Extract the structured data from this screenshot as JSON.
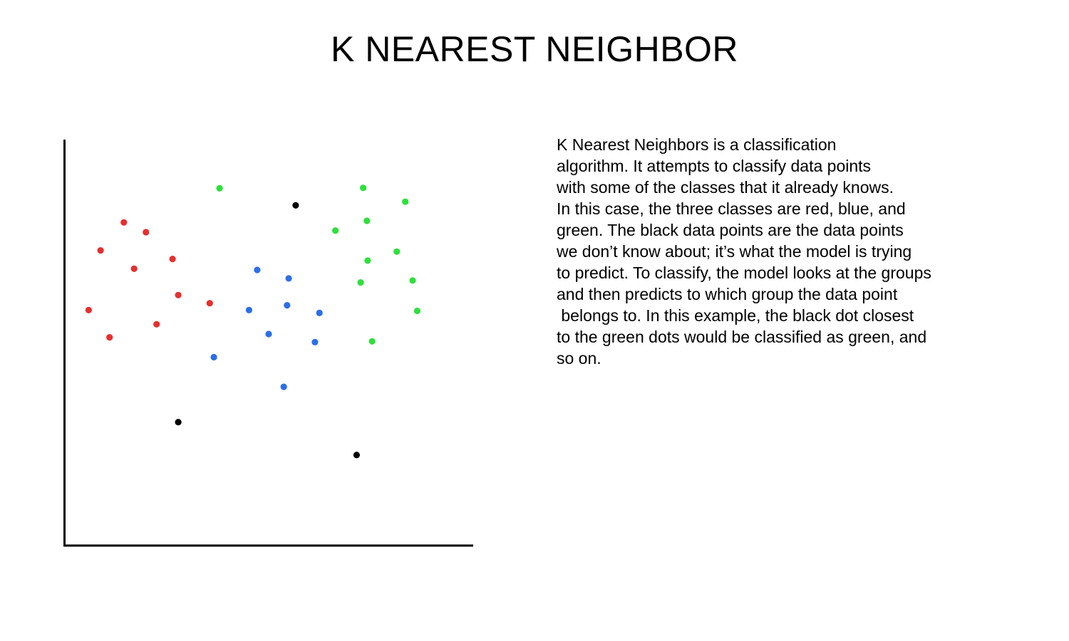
{
  "slide": {
    "title": "K NEAREST NEIGHBOR"
  },
  "description": {
    "lines": [
      "K Nearest Neighbors is a classification",
      "algorithm. It attempts to classify data points",
      "with some of the classes that it already knows.",
      "In this case, the three classes are red, blue, and",
      "green. The black data points are the data points",
      "we don’t know about; it’s what the model is trying",
      "to predict. To classify, the model looks at the groups",
      "and then predicts to which group the data point",
      " belongs to. In this example, the black dot closest",
      "to the green dots would be classified as green, and",
      "so on."
    ]
  },
  "chart_data": {
    "type": "scatter",
    "title": "",
    "xlabel": "",
    "ylabel": "",
    "xlim": [
      0,
      100
    ],
    "ylim": [
      0,
      100
    ],
    "grid": false,
    "legend": "none",
    "axis_color": "#000000",
    "series": [
      {
        "color": "#e53030",
        "points": [
          [
            14.6,
            79.6
          ],
          [
            20.0,
            77.2
          ],
          [
            8.9,
            72.7
          ],
          [
            26.5,
            70.6
          ],
          [
            17.1,
            68.2
          ],
          [
            27.9,
            61.7
          ],
          [
            35.6,
            59.7
          ],
          [
            6.0,
            58.0
          ],
          [
            22.6,
            54.5
          ],
          [
            11.1,
            51.3
          ]
        ]
      },
      {
        "color": "#2c6fe6",
        "points": [
          [
            47.2,
            67.9
          ],
          [
            54.9,
            65.8
          ],
          [
            45.2,
            58.0
          ],
          [
            54.5,
            59.2
          ],
          [
            62.4,
            57.3
          ],
          [
            50.0,
            52.1
          ],
          [
            61.3,
            50.1
          ],
          [
            36.6,
            46.4
          ],
          [
            53.7,
            39.1
          ]
        ]
      },
      {
        "color": "#2ee03c",
        "points": [
          [
            38.0,
            88.0
          ],
          [
            73.1,
            88.1
          ],
          [
            83.4,
            84.7
          ],
          [
            74.0,
            80.0
          ],
          [
            66.3,
            77.6
          ],
          [
            81.3,
            72.4
          ],
          [
            74.2,
            70.2
          ],
          [
            72.5,
            64.8
          ],
          [
            85.2,
            65.3
          ],
          [
            86.3,
            57.8
          ],
          [
            75.3,
            50.3
          ]
        ]
      },
      {
        "color": "#000000",
        "points": [
          [
            56.6,
            83.8
          ],
          [
            27.9,
            30.4
          ],
          [
            71.5,
            22.3
          ]
        ]
      }
    ]
  }
}
